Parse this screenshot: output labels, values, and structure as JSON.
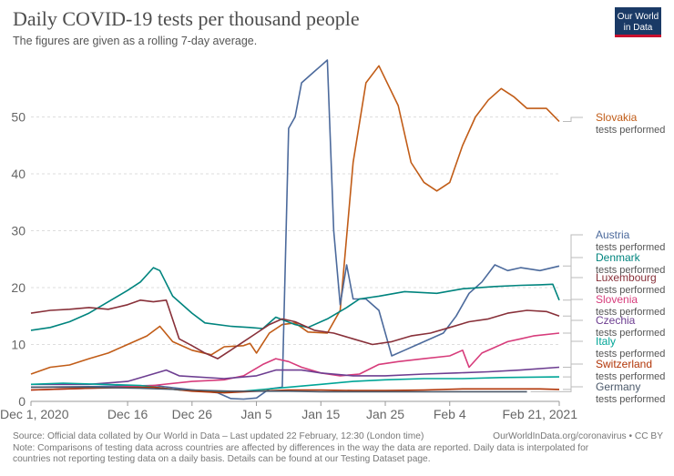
{
  "header": {
    "title": "Daily COVID-19 tests per thousand people",
    "subtitle": "The figures are given as a rolling 7-day average.",
    "logo_line1": "Our World",
    "logo_line2": "in Data"
  },
  "footer": {
    "source": "Source: Official data collated by Our World in Data – Last updated 22 February, 12:30 (London time)",
    "source_right": "OurWorldInData.org/coronavirus • CC BY",
    "note_line1": "Note: Comparisons of testing data across countries are affected by differences in the way the data are reported. Daily data is interpolated for",
    "note_line2": "countries not reporting testing data on a daily basis. Details can be found at our Testing Dataset page."
  },
  "chart_data": {
    "type": "line",
    "title": "Daily COVID-19 tests per thousand people",
    "subtitle": "The figures are given as a rolling 7-day average.",
    "x_domain": [
      "2020-12-01",
      "2021-02-21"
    ],
    "x_ticks": [
      {
        "date": "2020-12-01",
        "label": "Dec 1, 2020"
      },
      {
        "date": "2020-12-16",
        "label": "Dec 16"
      },
      {
        "date": "2020-12-26",
        "label": "Dec 26"
      },
      {
        "date": "2021-01-05",
        "label": "Jan 5"
      },
      {
        "date": "2021-01-15",
        "label": "Jan 15"
      },
      {
        "date": "2021-01-25",
        "label": "Jan 25"
      },
      {
        "date": "2021-02-04",
        "label": "Feb 4"
      },
      {
        "date": "2021-02-21",
        "label": "Feb 21, 2021"
      }
    ],
    "ylim": [
      0,
      60
    ],
    "y_ticks": [
      0,
      10,
      20,
      30,
      40,
      50
    ],
    "grid": "horizontal-dashed",
    "legend_placement": "right",
    "legend_sublabel": "tests performed",
    "series": [
      {
        "name": "Slovakia",
        "color": "#c15c17",
        "points": [
          [
            "2020-12-01",
            4.8
          ],
          [
            "2020-12-04",
            6.0
          ],
          [
            "2020-12-07",
            6.4
          ],
          [
            "2020-12-10",
            7.5
          ],
          [
            "2020-12-13",
            8.5
          ],
          [
            "2020-12-16",
            10.0
          ],
          [
            "2020-12-19",
            11.5
          ],
          [
            "2020-12-21",
            13.2
          ],
          [
            "2020-12-23",
            10.5
          ],
          [
            "2020-12-26",
            9.0
          ],
          [
            "2020-12-29",
            8.2
          ],
          [
            "2020-12-31",
            9.6
          ],
          [
            "2021-01-03",
            9.8
          ],
          [
            "2021-01-04",
            10.2
          ],
          [
            "2021-01-05",
            8.5
          ],
          [
            "2021-01-07",
            12.0
          ],
          [
            "2021-01-09",
            13.5
          ],
          [
            "2021-01-11",
            13.8
          ],
          [
            "2021-01-13",
            12.2
          ],
          [
            "2021-01-16",
            12.0
          ],
          [
            "2021-01-18",
            16.0
          ],
          [
            "2021-01-20",
            42.0
          ],
          [
            "2021-01-22",
            56.0
          ],
          [
            "2021-01-24",
            59.0
          ],
          [
            "2021-01-27",
            52.0
          ],
          [
            "2021-01-29",
            42.0
          ],
          [
            "2021-01-31",
            38.5
          ],
          [
            "2021-02-02",
            37.0
          ],
          [
            "2021-02-04",
            38.5
          ],
          [
            "2021-02-06",
            45.0
          ],
          [
            "2021-02-08",
            50.0
          ],
          [
            "2021-02-10",
            53.0
          ],
          [
            "2021-02-12",
            55.0
          ],
          [
            "2021-02-14",
            53.5
          ],
          [
            "2021-02-16",
            51.5
          ],
          [
            "2021-02-19",
            51.5
          ],
          [
            "2021-02-21",
            49.2
          ]
        ]
      },
      {
        "name": "Austria",
        "color": "#4c6a9c",
        "points": [
          [
            "2020-12-01",
            2.5
          ],
          [
            "2020-12-10",
            2.6
          ],
          [
            "2020-12-20",
            2.8
          ],
          [
            "2020-12-30",
            1.5
          ],
          [
            "2021-01-01",
            0.5
          ],
          [
            "2021-01-03",
            0.4
          ],
          [
            "2021-01-05",
            0.6
          ],
          [
            "2021-01-07",
            2.2
          ],
          [
            "2021-01-09",
            2.5
          ],
          [
            "2021-01-10",
            48.0
          ],
          [
            "2021-01-11",
            50.0
          ],
          [
            "2021-01-12",
            56.0
          ],
          [
            "2021-01-14",
            58.0
          ],
          [
            "2021-01-15",
            59.0
          ],
          [
            "2021-01-16",
            60.0
          ],
          [
            "2021-01-17",
            30.0
          ],
          [
            "2021-01-18",
            17.0
          ],
          [
            "2021-01-19",
            24.0
          ],
          [
            "2021-01-20",
            18.0
          ],
          [
            "2021-01-22",
            18.0
          ],
          [
            "2021-01-24",
            16.0
          ],
          [
            "2021-01-26",
            8.0
          ],
          [
            "2021-01-28",
            9.0
          ],
          [
            "2021-01-31",
            10.5
          ],
          [
            "2021-02-03",
            12.0
          ],
          [
            "2021-02-05",
            15.0
          ],
          [
            "2021-02-07",
            19.0
          ],
          [
            "2021-02-09",
            21.0
          ],
          [
            "2021-02-11",
            24.0
          ],
          [
            "2021-02-13",
            23.0
          ],
          [
            "2021-02-15",
            23.5
          ],
          [
            "2021-02-18",
            23.0
          ],
          [
            "2021-02-21",
            23.8
          ]
        ]
      },
      {
        "name": "Denmark",
        "color": "#00847e",
        "points": [
          [
            "2020-12-01",
            12.5
          ],
          [
            "2020-12-04",
            13.0
          ],
          [
            "2020-12-07",
            14.0
          ],
          [
            "2020-12-10",
            15.5
          ],
          [
            "2020-12-13",
            17.5
          ],
          [
            "2020-12-16",
            19.5
          ],
          [
            "2020-12-18",
            21.0
          ],
          [
            "2020-12-20",
            23.5
          ],
          [
            "2020-12-21",
            23.0
          ],
          [
            "2020-12-23",
            18.5
          ],
          [
            "2020-12-26",
            15.5
          ],
          [
            "2020-12-28",
            13.8
          ],
          [
            "2021-01-01",
            13.2
          ],
          [
            "2021-01-04",
            13.0
          ],
          [
            "2021-01-06",
            12.8
          ],
          [
            "2021-01-08",
            14.8
          ],
          [
            "2021-01-11",
            13.5
          ],
          [
            "2021-01-13",
            13.0
          ],
          [
            "2021-01-16",
            14.5
          ],
          [
            "2021-01-19",
            16.5
          ],
          [
            "2021-01-21",
            18.0
          ],
          [
            "2021-01-24",
            18.5
          ],
          [
            "2021-01-28",
            19.3
          ],
          [
            "2021-02-02",
            19.0
          ],
          [
            "2021-02-06",
            19.8
          ],
          [
            "2021-02-11",
            20.2
          ],
          [
            "2021-02-15",
            20.4
          ],
          [
            "2021-02-18",
            20.5
          ],
          [
            "2021-02-20",
            20.6
          ],
          [
            "2021-02-21",
            17.8
          ]
        ]
      },
      {
        "name": "Luxembourg",
        "color": "#883039",
        "points": [
          [
            "2020-12-01",
            15.5
          ],
          [
            "2020-12-04",
            16.0
          ],
          [
            "2020-12-07",
            16.2
          ],
          [
            "2020-12-10",
            16.5
          ],
          [
            "2020-12-13",
            16.2
          ],
          [
            "2020-12-16",
            17.0
          ],
          [
            "2020-12-18",
            17.8
          ],
          [
            "2020-12-20",
            17.5
          ],
          [
            "2020-12-22",
            17.8
          ],
          [
            "2020-12-24",
            11.0
          ],
          [
            "2020-12-26",
            9.8
          ],
          [
            "2020-12-28",
            8.5
          ],
          [
            "2020-12-30",
            7.5
          ],
          [
            "2021-01-01",
            9.0
          ],
          [
            "2021-01-03",
            10.5
          ],
          [
            "2021-01-05",
            12.0
          ],
          [
            "2021-01-07",
            13.5
          ],
          [
            "2021-01-09",
            14.5
          ],
          [
            "2021-01-11",
            14.0
          ],
          [
            "2021-01-14",
            12.5
          ],
          [
            "2021-01-17",
            12.0
          ],
          [
            "2021-01-20",
            11.0
          ],
          [
            "2021-01-23",
            10.0
          ],
          [
            "2021-01-26",
            10.5
          ],
          [
            "2021-01-29",
            11.5
          ],
          [
            "2021-02-01",
            12.0
          ],
          [
            "2021-02-04",
            13.0
          ],
          [
            "2021-02-07",
            14.0
          ],
          [
            "2021-02-10",
            14.5
          ],
          [
            "2021-02-13",
            15.5
          ],
          [
            "2021-02-16",
            16.0
          ],
          [
            "2021-02-19",
            15.8
          ],
          [
            "2021-02-21",
            15.0
          ]
        ]
      },
      {
        "name": "Slovenia",
        "color": "#d73c7b",
        "points": [
          [
            "2020-12-01",
            2.0
          ],
          [
            "2020-12-10",
            2.3
          ],
          [
            "2020-12-20",
            2.8
          ],
          [
            "2020-12-26",
            3.5
          ],
          [
            "2020-12-31",
            3.8
          ],
          [
            "2021-01-03",
            4.5
          ],
          [
            "2021-01-06",
            6.5
          ],
          [
            "2021-01-08",
            7.5
          ],
          [
            "2021-01-10",
            7.0
          ],
          [
            "2021-01-12",
            6.0
          ],
          [
            "2021-01-15",
            5.0
          ],
          [
            "2021-01-18",
            4.5
          ],
          [
            "2021-01-21",
            4.8
          ],
          [
            "2021-01-24",
            6.5
          ],
          [
            "2021-01-27",
            7.0
          ],
          [
            "2021-01-31",
            7.5
          ],
          [
            "2021-02-04",
            8.0
          ],
          [
            "2021-02-06",
            9.0
          ],
          [
            "2021-02-07",
            6.0
          ],
          [
            "2021-02-09",
            8.5
          ],
          [
            "2021-02-11",
            9.5
          ],
          [
            "2021-02-13",
            10.5
          ],
          [
            "2021-02-15",
            11.0
          ],
          [
            "2021-02-17",
            11.5
          ],
          [
            "2021-02-21",
            12.0
          ]
        ]
      },
      {
        "name": "Czechia",
        "color": "#6d3e91",
        "points": [
          [
            "2020-12-01",
            3.0
          ],
          [
            "2020-12-10",
            3.0
          ],
          [
            "2020-12-16",
            3.5
          ],
          [
            "2020-12-22",
            5.5
          ],
          [
            "2020-12-24",
            4.5
          ],
          [
            "2020-12-31",
            4.0
          ],
          [
            "2021-01-05",
            4.5
          ],
          [
            "2021-01-08",
            5.5
          ],
          [
            "2021-01-12",
            5.5
          ],
          [
            "2021-01-15",
            5.0
          ],
          [
            "2021-01-20",
            4.5
          ],
          [
            "2021-01-25",
            4.5
          ],
          [
            "2021-01-31",
            4.8
          ],
          [
            "2021-02-05",
            5.0
          ],
          [
            "2021-02-10",
            5.2
          ],
          [
            "2021-02-15",
            5.5
          ],
          [
            "2021-02-21",
            6.0
          ]
        ]
      },
      {
        "name": "Italy",
        "color": "#00a597",
        "points": [
          [
            "2020-12-01",
            3.0
          ],
          [
            "2020-12-06",
            3.2
          ],
          [
            "2020-12-12",
            3.0
          ],
          [
            "2020-12-18",
            2.8
          ],
          [
            "2020-12-24",
            2.0
          ],
          [
            "2020-12-28",
            1.8
          ],
          [
            "2021-01-01",
            1.6
          ],
          [
            "2021-01-05",
            2.0
          ],
          [
            "2021-01-10",
            2.5
          ],
          [
            "2021-01-15",
            3.0
          ],
          [
            "2021-01-20",
            3.5
          ],
          [
            "2021-01-25",
            3.8
          ],
          [
            "2021-01-31",
            4.0
          ],
          [
            "2021-02-06",
            4.0
          ],
          [
            "2021-02-12",
            4.2
          ],
          [
            "2021-02-21",
            4.3
          ]
        ]
      },
      {
        "name": "Switzerland",
        "color": "#b13507",
        "points": [
          [
            "2020-12-01",
            2.0
          ],
          [
            "2020-12-10",
            2.3
          ],
          [
            "2020-12-20",
            2.5
          ],
          [
            "2020-12-26",
            1.8
          ],
          [
            "2020-12-31",
            1.5
          ],
          [
            "2021-01-05",
            1.8
          ],
          [
            "2021-01-10",
            2.0
          ],
          [
            "2021-01-15",
            2.0
          ],
          [
            "2021-01-20",
            1.9
          ],
          [
            "2021-01-25",
            1.9
          ],
          [
            "2021-01-31",
            2.0
          ],
          [
            "2021-02-06",
            2.2
          ],
          [
            "2021-02-12",
            2.2
          ],
          [
            "2021-02-18",
            2.2
          ],
          [
            "2021-02-21",
            2.1
          ]
        ]
      },
      {
        "name": "Germany",
        "color": "#4c5a6b",
        "points": [
          [
            "2020-12-01",
            2.5
          ],
          [
            "2020-12-10",
            2.5
          ],
          [
            "2020-12-18",
            2.3
          ],
          [
            "2020-12-26",
            2.0
          ],
          [
            "2021-01-01",
            1.8
          ],
          [
            "2021-01-05",
            1.8
          ],
          [
            "2021-01-10",
            1.8
          ],
          [
            "2021-01-15",
            1.7
          ],
          [
            "2021-01-20",
            1.7
          ],
          [
            "2021-01-25",
            1.7
          ],
          [
            "2021-01-31",
            1.7
          ],
          [
            "2021-02-05",
            1.7
          ],
          [
            "2021-02-10",
            1.7
          ],
          [
            "2021-02-16",
            1.7
          ]
        ]
      }
    ]
  }
}
